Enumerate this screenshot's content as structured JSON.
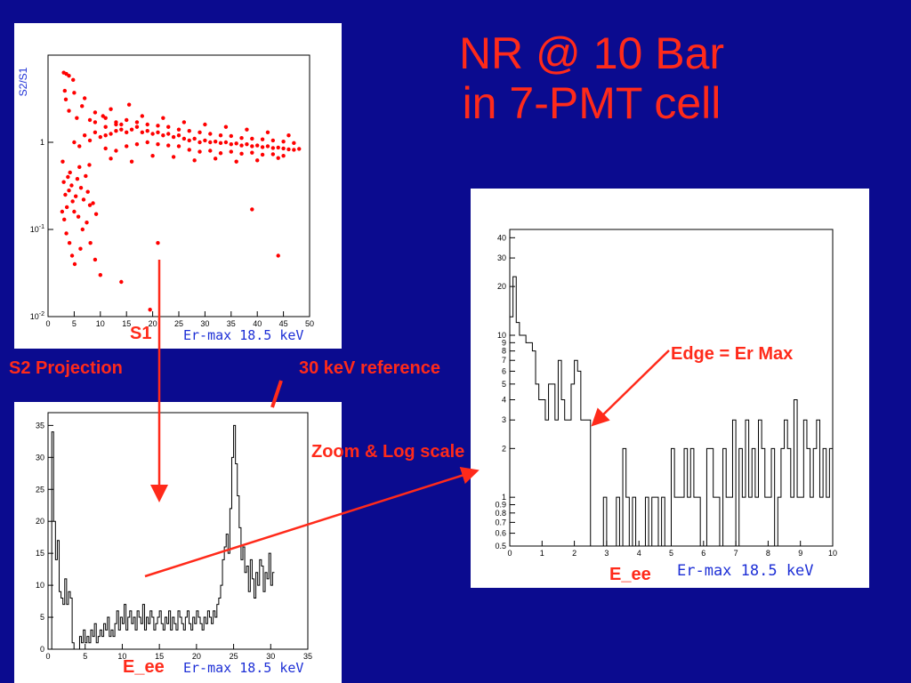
{
  "slide": {
    "title_line1": "NR @ 10 Bar",
    "title_line2": "in 7-PMT cell"
  },
  "labels": {
    "s1": "S1",
    "s2_projection": "S2 Projection",
    "ref_30kev": "30 keV reference",
    "zoom_log": "Zoom & Log scale",
    "edge": "Edge = Er Max",
    "eee_left": "E_ee",
    "eee_right": "E_ee"
  },
  "colors": {
    "background": "#0b0b8f",
    "accent": "#ff2a1a",
    "axis_text": "#1d2fd6"
  },
  "chart_data": [
    {
      "id": "scatter",
      "type": "scatter",
      "ylabel": "S2/S1",
      "xlabel": "Er-max 18.5 keV",
      "y_scale": "log",
      "xlim": [
        0,
        50
      ],
      "ylim": [
        0.01,
        10
      ],
      "x_ticks": [
        "0",
        "5",
        "10",
        "15",
        "20",
        "25",
        "30",
        "35",
        "40",
        "45",
        "50"
      ],
      "y_ticks": [
        "10^-2",
        "10^-1",
        "1"
      ],
      "marker_color": "#ff0000",
      "points": [
        [
          3,
          6.3
        ],
        [
          3.5,
          6.1
        ],
        [
          4,
          5.8
        ],
        [
          4.8,
          5.2
        ],
        [
          3.2,
          3.9
        ],
        [
          5,
          3.7
        ],
        [
          3.4,
          3.1
        ],
        [
          6.5,
          2.6
        ],
        [
          7,
          3.2
        ],
        [
          9,
          2.2
        ],
        [
          10.5,
          2.0
        ],
        [
          12,
          2.4
        ],
        [
          14,
          1.6
        ],
        [
          15.5,
          2.7
        ],
        [
          4,
          2.3
        ],
        [
          5.5,
          1.9
        ],
        [
          8,
          1.8
        ],
        [
          11,
          1.5
        ],
        [
          13,
          1.7
        ],
        [
          2.8,
          0.6
        ],
        [
          3,
          0.35
        ],
        [
          3.3,
          0.25
        ],
        [
          3.6,
          0.18
        ],
        [
          4,
          0.28
        ],
        [
          4.2,
          0.45
        ],
        [
          4.5,
          0.32
        ],
        [
          4.7,
          0.21
        ],
        [
          5,
          0.16
        ],
        [
          5.3,
          0.24
        ],
        [
          5.6,
          0.38
        ],
        [
          6,
          0.52
        ],
        [
          6.3,
          0.3
        ],
        [
          6.8,
          0.22
        ],
        [
          7.2,
          0.41
        ],
        [
          7.6,
          0.27
        ],
        [
          8,
          0.19
        ],
        [
          3.1,
          0.13
        ],
        [
          3.5,
          0.09
        ],
        [
          4.1,
          0.07
        ],
        [
          4.6,
          0.05
        ],
        [
          5.1,
          0.04
        ],
        [
          6.2,
          0.06
        ],
        [
          6.6,
          0.1
        ],
        [
          7.4,
          0.12
        ],
        [
          8.1,
          0.07
        ],
        [
          9,
          0.045
        ],
        [
          10,
          0.03
        ],
        [
          2.7,
          0.16
        ],
        [
          3.8,
          0.4
        ],
        [
          5.8,
          0.14
        ],
        [
          7.9,
          0.55
        ],
        [
          8.6,
          0.2
        ],
        [
          9.2,
          0.15
        ],
        [
          14,
          0.025
        ],
        [
          19.5,
          0.012
        ],
        [
          21,
          0.07
        ],
        [
          39,
          0.17
        ],
        [
          44,
          0.05
        ],
        [
          5,
          1.0
        ],
        [
          6,
          0.9
        ],
        [
          7,
          1.2
        ],
        [
          8,
          1.05
        ],
        [
          9,
          1.3
        ],
        [
          10,
          1.15
        ],
        [
          11,
          1.2
        ],
        [
          12,
          1.25
        ],
        [
          13,
          1.35
        ],
        [
          14,
          1.4
        ],
        [
          15,
          1.3
        ],
        [
          16,
          1.4
        ],
        [
          17,
          1.5
        ],
        [
          18,
          1.3
        ],
        [
          19,
          1.35
        ],
        [
          20,
          1.25
        ],
        [
          21,
          1.3
        ],
        [
          22,
          1.2
        ],
        [
          23,
          1.25
        ],
        [
          24,
          1.15
        ],
        [
          25,
          1.2
        ],
        [
          26,
          1.1
        ],
        [
          27,
          1.05
        ],
        [
          28,
          1.1
        ],
        [
          29,
          1.0
        ],
        [
          30,
          1.05
        ],
        [
          31,
          1.0
        ],
        [
          32,
          1.02
        ],
        [
          33,
          0.98
        ],
        [
          34,
          1.0
        ],
        [
          35,
          0.95
        ],
        [
          36,
          0.97
        ],
        [
          37,
          0.92
        ],
        [
          38,
          0.95
        ],
        [
          39,
          0.9
        ],
        [
          40,
          0.92
        ],
        [
          41,
          0.88
        ],
        [
          42,
          0.9
        ],
        [
          43,
          0.86
        ],
        [
          44,
          0.87
        ],
        [
          45,
          0.85
        ],
        [
          46,
          0.83
        ],
        [
          47,
          0.82
        ],
        [
          48,
          0.84
        ],
        [
          11,
          0.85
        ],
        [
          13,
          0.8
        ],
        [
          15,
          0.9
        ],
        [
          17,
          0.95
        ],
        [
          19,
          1.0
        ],
        [
          21,
          0.95
        ],
        [
          23,
          0.92
        ],
        [
          25,
          0.9
        ],
        [
          27,
          0.82
        ],
        [
          29,
          0.78
        ],
        [
          31,
          0.8
        ],
        [
          33,
          0.75
        ],
        [
          35,
          0.78
        ],
        [
          37,
          0.74
        ],
        [
          39,
          0.76
        ],
        [
          41,
          0.72
        ],
        [
          43,
          0.73
        ],
        [
          45,
          0.7
        ],
        [
          9,
          1.7
        ],
        [
          11,
          1.9
        ],
        [
          13,
          1.6
        ],
        [
          15,
          1.8
        ],
        [
          17,
          1.7
        ],
        [
          19,
          1.6
        ],
        [
          21,
          1.55
        ],
        [
          23,
          1.5
        ],
        [
          25,
          1.4
        ],
        [
          27,
          1.35
        ],
        [
          29,
          1.3
        ],
        [
          31,
          1.25
        ],
        [
          33,
          1.2
        ],
        [
          35,
          1.18
        ],
        [
          37,
          1.12
        ],
        [
          39,
          1.1
        ],
        [
          41,
          1.08
        ],
        [
          43,
          1.05
        ],
        [
          45,
          1.02
        ],
        [
          47,
          0.98
        ],
        [
          12,
          0.65
        ],
        [
          16,
          0.6
        ],
        [
          20,
          0.7
        ],
        [
          24,
          0.68
        ],
        [
          28,
          0.62
        ],
        [
          32,
          0.65
        ],
        [
          36,
          0.6
        ],
        [
          40,
          0.62
        ],
        [
          44,
          0.66
        ],
        [
          18,
          2.0
        ],
        [
          22,
          1.9
        ],
        [
          26,
          1.7
        ],
        [
          30,
          1.6
        ],
        [
          34,
          1.5
        ],
        [
          38,
          1.4
        ],
        [
          42,
          1.3
        ],
        [
          46,
          1.2
        ]
      ]
    },
    {
      "id": "s2proj",
      "type": "histogram",
      "xlabel": "Er-max 18.5 keV",
      "y_scale": "linear",
      "xlim": [
        0,
        35
      ],
      "ylim": [
        0,
        37
      ],
      "x_ticks": [
        "0",
        "5",
        "10",
        "15",
        "20",
        "25",
        "30",
        "35"
      ],
      "y_ticks": [
        "0",
        "5",
        "10",
        "15",
        "20",
        "25",
        "30",
        "35"
      ],
      "bin_width": 0.25,
      "x_start": 0.5,
      "values": [
        34,
        20,
        14,
        17,
        9,
        8,
        7,
        11,
        7,
        9,
        8,
        1,
        0,
        0,
        0,
        2,
        1,
        3,
        1,
        2,
        1,
        3,
        2,
        4,
        1,
        2,
        3,
        2,
        4,
        3,
        5,
        2,
        3,
        2,
        4,
        6,
        3,
        5,
        4,
        7,
        3,
        5,
        6,
        4,
        5,
        3,
        6,
        5,
        4,
        7,
        3,
        5,
        4,
        6,
        5,
        3,
        4,
        5,
        6,
        4,
        3,
        5,
        4,
        6,
        3,
        5,
        4,
        3,
        6,
        5,
        4,
        3,
        5,
        6,
        4,
        3,
        5,
        4,
        6,
        5,
        4,
        3,
        5,
        4,
        6,
        5,
        4,
        6,
        5,
        7,
        8,
        10,
        14,
        16,
        18,
        15,
        22,
        30,
        35,
        29,
        24,
        19,
        14,
        16,
        12,
        13,
        9,
        14,
        11,
        8,
        12,
        10,
        14,
        13,
        9,
        12,
        11,
        15,
        10,
        12
      ]
    },
    {
      "id": "zoom",
      "type": "histogram",
      "xlabel": "Er-max 18.5 keV",
      "y_scale": "log",
      "xlim": [
        0,
        10
      ],
      "ylim": [
        0.5,
        45
      ],
      "x_ticks": [
        "0",
        "1",
        "2",
        "3",
        "4",
        "5",
        "6",
        "7",
        "8",
        "9",
        "10"
      ],
      "y_ticks": [
        "0.5",
        "0.6",
        "0.7",
        "0.8",
        "0.9",
        "1",
        "2",
        "3",
        "4",
        "5",
        "6",
        "7",
        "8",
        "9",
        "10",
        "20",
        "30",
        "40"
      ],
      "bin_width": 0.1,
      "x_start": 0,
      "values": [
        13,
        23,
        12,
        10,
        10,
        9,
        9,
        8,
        5,
        4,
        4,
        3,
        5,
        5,
        3,
        7,
        4,
        3,
        3,
        5,
        7,
        6,
        3,
        3,
        3,
        0,
        0,
        0,
        0,
        1,
        0,
        0,
        0,
        1,
        0,
        2,
        1,
        0,
        1,
        0,
        0,
        0,
        1,
        0,
        1,
        1,
        0,
        1,
        0,
        0,
        2,
        1,
        1,
        1,
        2,
        1,
        2,
        1,
        1,
        0,
        0,
        2,
        2,
        1,
        1,
        0,
        2,
        1,
        1,
        3,
        0,
        2,
        1,
        3,
        1,
        2,
        1,
        3,
        2,
        1,
        1,
        2,
        0,
        1,
        2,
        3,
        2,
        1,
        4,
        1,
        1,
        3,
        2,
        1,
        2,
        3,
        1,
        2,
        1,
        2
      ]
    }
  ]
}
